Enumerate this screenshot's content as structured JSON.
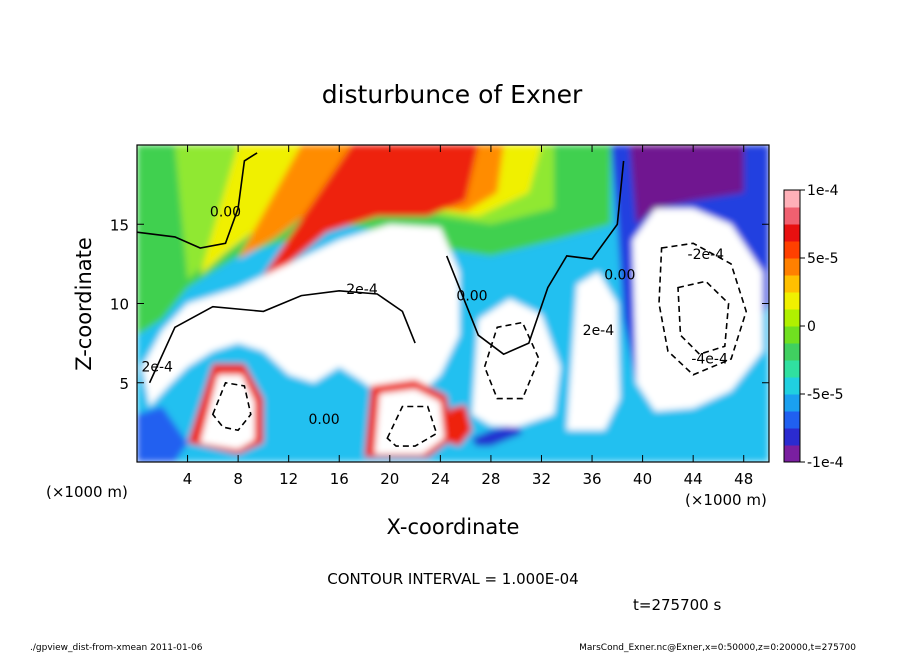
{
  "chart_data": {
    "type": "heatmap",
    "title": "disturbunce of Exner",
    "xlabel": "X-coordinate",
    "ylabel": "Z-coordinate",
    "x_unit": "(×1000 m)",
    "y_unit": "(×1000 m)",
    "xlim": [
      0,
      50
    ],
    "ylim": [
      0,
      20
    ],
    "x_ticks": [
      4,
      8,
      12,
      16,
      20,
      24,
      28,
      32,
      36,
      40,
      44,
      48
    ],
    "y_ticks": [
      5,
      10,
      15
    ],
    "colorbar": {
      "range": [
        -0.0001,
        0.0001
      ],
      "tick_values": [
        0.0001,
        5e-05,
        0,
        -5e-05,
        -0.0001
      ],
      "tick_labels": [
        "1e-4",
        "5e-5",
        "0",
        "-5e-5",
        "-1e-4"
      ],
      "colors": [
        "#7a1fa0",
        "#2b2bd0",
        "#2060f0",
        "#1aa0f0",
        "#20d0e0",
        "#30e0a0",
        "#40d060",
        "#70e020",
        "#b0f000",
        "#f0f000",
        "#ffc000",
        "#ff8000",
        "#ff4000",
        "#e81010",
        "#f06070",
        "#ffb0b8"
      ]
    },
    "contour_labels": [
      {
        "text": "0.00",
        "x": 7.0,
        "z": 15.5
      },
      {
        "text": "2e-4",
        "x": 17.8,
        "z": 10.6
      },
      {
        "text": "2e-4",
        "x": 1.6,
        "z": 5.7
      },
      {
        "text": "0.00",
        "x": 26.5,
        "z": 10.2
      },
      {
        "text": "0.00",
        "x": 38.2,
        "z": 11.5
      },
      {
        "text": "2e-4",
        "x": 36.5,
        "z": 8.0
      },
      {
        "text": "-2e-4",
        "x": 45.0,
        "z": 12.8
      },
      {
        "text": "-4e-4",
        "x": 45.3,
        "z": 6.2
      },
      {
        "text": "0.00",
        "x": 14.8,
        "z": 2.4
      }
    ],
    "contour_interval_label": "CONTOUR INTERVAL = 1.000E-04",
    "time_label": "t=275700 s"
  },
  "footer": {
    "left": "./gpview_dist-from-xmean  2011-01-06",
    "right": "MarsCond_Exner.nc@Exner,x=0:50000,z=0:20000,t=275700"
  }
}
